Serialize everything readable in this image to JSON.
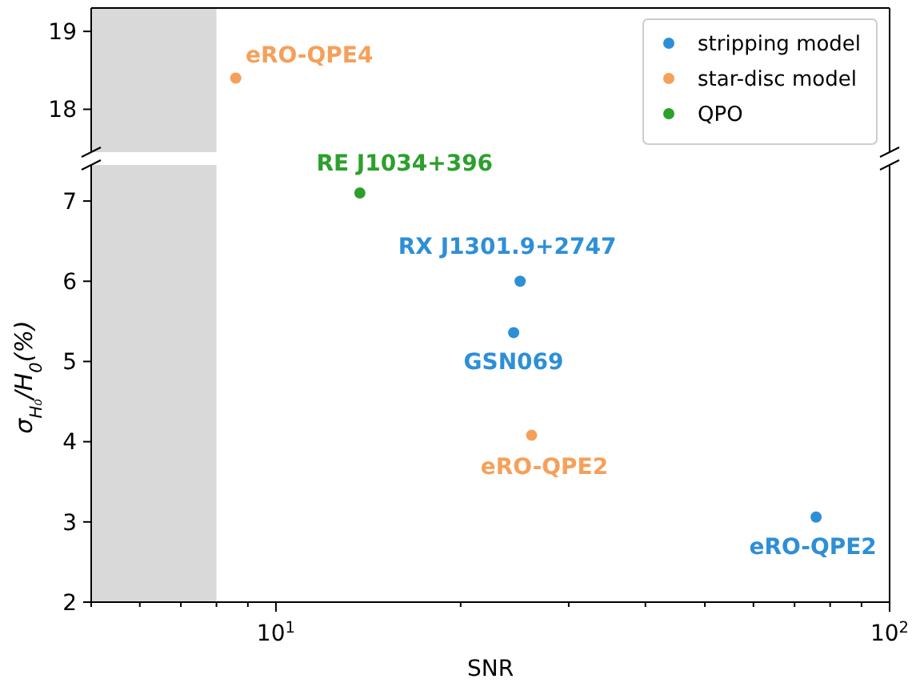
{
  "chart_data": [
    {
      "type": "scatter",
      "xlim": [
        5,
        100
      ],
      "ylim": [
        17.45,
        19.3
      ],
      "yticks": [
        18,
        19
      ],
      "log": "x",
      "grid": false,
      "marker": "circle",
      "legend": "top right",
      "tick_labels": "y",
      "series": [
        {
          "name": "stripping model",
          "color": "#2e8fd6"
        },
        {
          "name": "star-disc model",
          "color": "#f5a05a",
          "x": [
            8.6
          ],
          "values": [
            18.4
          ]
        },
        {
          "name": "QPO",
          "color": "#2ca02c"
        }
      ],
      "bands": [
        {
          "axis": "x",
          "from": 5,
          "to": 8,
          "color": "#d9d9d9"
        }
      ],
      "annotations": [
        {
          "text": "eRO-QPE4",
          "x": 8.6,
          "y": 18.4
        }
      ]
    },
    {
      "type": "scatter",
      "xlim": [
        5,
        100
      ],
      "ylim": [
        2,
        7.45
      ],
      "yticks": [
        2,
        3,
        4,
        5,
        6,
        7
      ],
      "log": "x",
      "grid": false,
      "marker": "circle",
      "xlabel": "SNR",
      "ylabel": "σ$_{H₀}$/H$_{0}$(%)",
      "xticks": [
        {
          "value": 5,
          "label": null
        },
        {
          "value": 6,
          "label": null
        },
        {
          "value": 7,
          "label": null
        },
        {
          "value": 8,
          "label": null
        },
        {
          "value": 9,
          "label": null
        },
        {
          "value": 10,
          "label": "10$^{1}$"
        },
        {
          "value": 20,
          "label": null
        },
        {
          "value": 30,
          "label": null
        },
        {
          "value": 40,
          "label": null
        },
        {
          "value": 50,
          "label": null
        },
        {
          "value": 60,
          "label": null
        },
        {
          "value": 70,
          "label": null
        },
        {
          "value": 80,
          "label": null
        },
        {
          "value": 90,
          "label": null
        },
        {
          "value": 100,
          "label": "10$^{2}$"
        }
      ],
      "series": [
        {
          "color": "#2e8fd6",
          "x": [
            25,
            24.4,
            75.9
          ],
          "values": [
            6.0,
            5.36,
            3.06
          ]
        },
        {
          "color": "#f5a05a",
          "x": [
            26.1
          ],
          "values": [
            4.08
          ]
        },
        {
          "color": "#2ca02c",
          "x": [
            13.7
          ],
          "values": [
            7.1
          ]
        }
      ],
      "bands": [
        {
          "axis": "x",
          "from": 5,
          "to": 8,
          "color": "#d9d9d9"
        }
      ],
      "annotations": [
        {
          "text": "RE J1034+396",
          "x": 13.7,
          "y": 7.1
        },
        {
          "text": "RX J1301.9+2747",
          "x": 25,
          "y": 6.0
        },
        {
          "text": "GSN069",
          "x": 24.4,
          "y": 5.36
        },
        {
          "text": "eRO-QPE2",
          "x": 26.1,
          "y": 4.08
        },
        {
          "text": "eRO-QPE2",
          "x": 75.9,
          "y": 3.06
        }
      ]
    }
  ]
}
